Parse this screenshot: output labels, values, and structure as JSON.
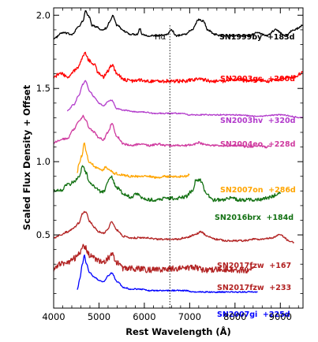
{
  "chart_data": {
    "type": "line",
    "title": "",
    "xlabel": "Rest Wavelength (Å)",
    "ylabel": "Scaled Flux Density + Offset",
    "xlim": [
      4000,
      9500
    ],
    "ylim": [
      0.0,
      2.05
    ],
    "x_ticks": [
      {
        "value": 4000,
        "label": "4000"
      },
      {
        "value": 5000,
        "label": "5000"
      },
      {
        "value": 6000,
        "label": "6000"
      },
      {
        "value": 7000,
        "label": "7000"
      },
      {
        "value": 8000,
        "label": "8000"
      },
      {
        "value": 9000,
        "label": "9000"
      }
    ],
    "y_ticks": [
      {
        "value": 0.5,
        "label": "0.5"
      },
      {
        "value": 1.0,
        "label": "1.0"
      },
      {
        "value": 1.5,
        "label": "1.5"
      },
      {
        "value": 2.0,
        "label": "2.0"
      }
    ],
    "grid": false,
    "vline": {
      "x": 6563,
      "label": "Hα"
    },
    "series": [
      {
        "name": "SN1999by  +183d",
        "color": "#000000",
        "noise": 0.006,
        "x": [
          4000,
          4200,
          4400,
          4550,
          4650,
          4700,
          4780,
          4850,
          4950,
          5050,
          5150,
          5250,
          5300,
          5400,
          5550,
          5700,
          5850,
          5900,
          5950,
          6100,
          6300,
          6500,
          6600,
          6700,
          6900,
          7050,
          7200,
          7300,
          7400,
          7550,
          7700,
          7900,
          8100,
          8300,
          8500,
          8700,
          8900,
          9100,
          9300,
          9500
        ],
        "y": [
          1.84,
          1.88,
          1.87,
          1.92,
          1.96,
          2.03,
          1.99,
          1.93,
          1.92,
          1.9,
          1.91,
          1.96,
          2.0,
          1.93,
          1.89,
          1.87,
          1.87,
          1.91,
          1.87,
          1.86,
          1.86,
          1.87,
          1.9,
          1.86,
          1.87,
          1.9,
          1.97,
          1.96,
          1.9,
          1.87,
          1.86,
          1.86,
          1.86,
          1.86,
          1.88,
          1.86,
          1.9,
          1.86,
          1.9,
          1.93
        ]
      },
      {
        "name": "SN2003gs  +200d",
        "color": "#ff0000",
        "noise": 0.012,
        "x": [
          4000,
          4150,
          4300,
          4450,
          4550,
          4650,
          4700,
          4780,
          4900,
          5000,
          5100,
          5200,
          5280,
          5400,
          5550,
          5700,
          5900,
          6100,
          6300,
          6500,
          6700,
          6900,
          7100,
          7200,
          7300,
          7500,
          7700,
          7900,
          8100,
          8300,
          8500,
          8700,
          8900,
          9100,
          9300,
          9500
        ],
        "y": [
          1.58,
          1.6,
          1.58,
          1.62,
          1.65,
          1.72,
          1.74,
          1.69,
          1.66,
          1.6,
          1.58,
          1.62,
          1.66,
          1.6,
          1.56,
          1.55,
          1.56,
          1.55,
          1.55,
          1.55,
          1.55,
          1.55,
          1.56,
          1.57,
          1.56,
          1.55,
          1.55,
          1.56,
          1.56,
          1.55,
          1.56,
          1.55,
          1.56,
          1.57,
          1.58,
          1.61
        ]
      },
      {
        "name": "SN2003hv  +320d",
        "color": "#b23bcb",
        "noise": 0.004,
        "x": [
          4300,
          4450,
          4550,
          4650,
          4700,
          4800,
          4900,
          5000,
          5100,
          5200,
          5280,
          5400,
          5600,
          5800,
          6000,
          6200,
          6400,
          6600,
          6800,
          7000,
          7200,
          7500,
          8000,
          8500,
          9000,
          9500
        ],
        "y": [
          1.35,
          1.39,
          1.45,
          1.53,
          1.55,
          1.48,
          1.44,
          1.4,
          1.38,
          1.41,
          1.42,
          1.36,
          1.35,
          1.34,
          1.34,
          1.33,
          1.33,
          1.33,
          1.33,
          1.32,
          1.32,
          1.32,
          1.32,
          1.31,
          1.32,
          1.3
        ]
      },
      {
        "name": "SN2004eo  +228d",
        "color": "#cf3a9f",
        "noise": 0.007,
        "x": [
          4000,
          4150,
          4300,
          4450,
          4550,
          4650,
          4700,
          4800,
          4900,
          5000,
          5100,
          5200,
          5280,
          5400,
          5550,
          5700,
          5900,
          6100,
          6300,
          6500,
          6700,
          6900,
          7100,
          7200,
          7300,
          7500,
          7700,
          7900,
          8100,
          8300,
          8500,
          8700,
          8800
        ],
        "y": [
          1.13,
          1.15,
          1.16,
          1.22,
          1.27,
          1.31,
          1.29,
          1.22,
          1.2,
          1.16,
          1.15,
          1.2,
          1.26,
          1.17,
          1.12,
          1.11,
          1.12,
          1.11,
          1.12,
          1.11,
          1.11,
          1.11,
          1.12,
          1.13,
          1.12,
          1.11,
          1.11,
          1.11,
          1.11,
          1.1,
          1.11,
          1.1,
          1.11
        ]
      },
      {
        "name": "SN2007on  +286d",
        "color": "#ffa500",
        "noise": 0.008,
        "x": [
          4520,
          4550,
          4620,
          4680,
          4720,
          4780,
          4850,
          4950,
          5050,
          5150,
          5250,
          5350,
          5500,
          5700,
          5900,
          6100,
          6300,
          6500,
          6700,
          6900,
          7000
        ],
        "y": [
          0.93,
          0.98,
          1.04,
          1.13,
          1.06,
          1.0,
          0.98,
          0.96,
          0.94,
          0.96,
          0.94,
          0.92,
          0.91,
          0.9,
          0.9,
          0.9,
          0.89,
          0.9,
          0.9,
          0.9,
          0.91
        ]
      },
      {
        "name": "SN2016brx  +184d",
        "color": "#137113",
        "noise": 0.012,
        "x": [
          4000,
          4150,
          4300,
          4450,
          4550,
          4650,
          4700,
          4800,
          4900,
          5000,
          5100,
          5200,
          5260,
          5400,
          5550,
          5700,
          5850,
          5950,
          6100,
          6300,
          6500,
          6700,
          6900,
          7050,
          7150,
          7250,
          7350,
          7500,
          7700,
          7900,
          8100,
          8300,
          8500,
          8700,
          8900,
          9000
        ],
        "y": [
          0.8,
          0.8,
          0.84,
          0.86,
          0.9,
          0.97,
          0.93,
          0.86,
          0.83,
          0.8,
          0.79,
          0.87,
          0.9,
          0.82,
          0.78,
          0.76,
          0.78,
          0.75,
          0.74,
          0.74,
          0.75,
          0.75,
          0.76,
          0.8,
          0.88,
          0.87,
          0.79,
          0.74,
          0.74,
          0.75,
          0.74,
          0.74,
          0.74,
          0.75,
          0.77,
          0.78
        ]
      },
      {
        "name": "SN2017fzw  +167",
        "color": "#b22222",
        "noise": 0.006,
        "x": [
          4000,
          4150,
          4300,
          4450,
          4550,
          4650,
          4700,
          4800,
          4900,
          5000,
          5100,
          5200,
          5280,
          5400,
          5550,
          5700,
          5900,
          6100,
          6300,
          6500,
          6700,
          6900,
          7100,
          7250,
          7400,
          7600,
          7800,
          8000,
          8200,
          8400,
          8600,
          8800,
          9000,
          9200,
          9300
        ],
        "y": [
          0.48,
          0.5,
          0.52,
          0.55,
          0.58,
          0.65,
          0.66,
          0.59,
          0.55,
          0.52,
          0.51,
          0.54,
          0.59,
          0.53,
          0.49,
          0.48,
          0.48,
          0.48,
          0.47,
          0.47,
          0.47,
          0.48,
          0.5,
          0.52,
          0.49,
          0.47,
          0.46,
          0.46,
          0.46,
          0.47,
          0.47,
          0.48,
          0.5,
          0.46,
          0.45
        ]
      },
      {
        "name": "SN2017fzw  +233",
        "color": "#b22222",
        "noise": 0.02,
        "x": [
          4000,
          4150,
          4300,
          4450,
          4550,
          4650,
          4700,
          4800,
          4900,
          5000,
          5100,
          5200,
          5280,
          5400,
          5550,
          5700,
          5900,
          6100,
          6300,
          6500,
          6700,
          6900,
          7100,
          7300,
          7500,
          7700,
          7900,
          8100,
          8300,
          8400
        ],
        "y": [
          0.27,
          0.3,
          0.31,
          0.34,
          0.37,
          0.43,
          0.41,
          0.36,
          0.34,
          0.32,
          0.31,
          0.34,
          0.37,
          0.31,
          0.27,
          0.27,
          0.27,
          0.26,
          0.26,
          0.27,
          0.27,
          0.27,
          0.28,
          0.26,
          0.26,
          0.27,
          0.26,
          0.26,
          0.26,
          0.27
        ]
      },
      {
        "name": "SN2007gi  +225d",
        "color": "#0000ff",
        "noise": 0.004,
        "x": [
          4520,
          4580,
          4630,
          4680,
          4720,
          4800,
          4900,
          5000,
          5100,
          5200,
          5280,
          5400,
          5550,
          5700,
          5900,
          6100,
          6300,
          6500,
          6700,
          6900,
          7100,
          7300,
          7500,
          7700,
          7900,
          8100,
          8300,
          8500
        ],
        "y": [
          0.13,
          0.2,
          0.3,
          0.36,
          0.3,
          0.24,
          0.21,
          0.19,
          0.18,
          0.22,
          0.24,
          0.18,
          0.14,
          0.13,
          0.13,
          0.12,
          0.12,
          0.12,
          0.12,
          0.12,
          0.11,
          0.11,
          0.11,
          0.11,
          0.11,
          0.11,
          0.11,
          0.11
        ]
      }
    ]
  }
}
